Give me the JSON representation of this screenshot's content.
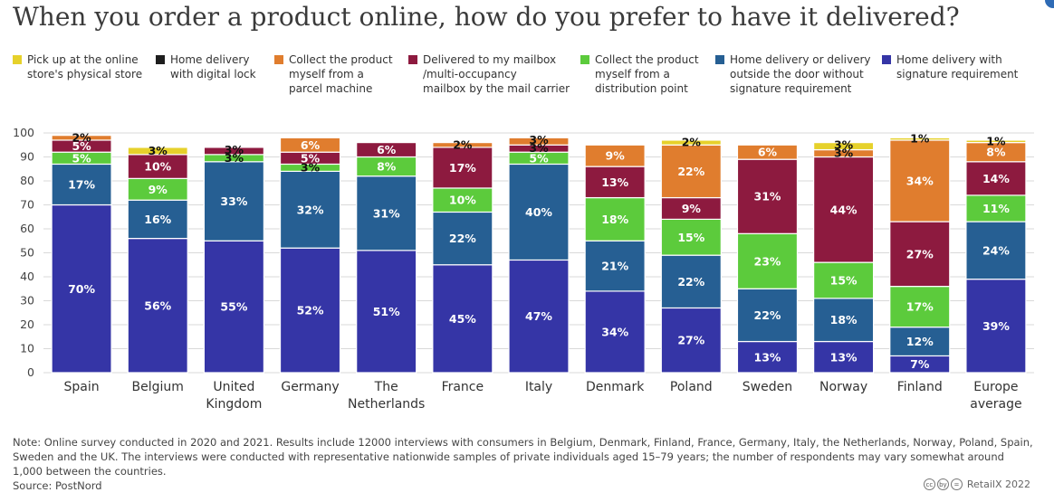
{
  "title": "When you order a product online, how do you prefer to have it delivered?",
  "note": "Note: Online survey conducted in 2020 and 2021. Results include 12000 interviews with consumers in Belgium, Denmark, Finland, France, Germany, Italy, the Netherlands, Norway, Poland, Spain, Sweden and the UK. The interviews were conducted with representative nationwide samples of private individuals aged 15–79 years; the number of respondents may vary somewhat around 1,000 between the countries.",
  "source": "Source: PostNord",
  "brand": "RetailX 2022",
  "cc_icons": [
    "cc",
    "by",
    "="
  ],
  "chart_data": {
    "type": "bar",
    "stacked": true,
    "title": "When you order a product online, how do you prefer to have it delivered?",
    "categories": [
      "Spain",
      "Belgium",
      "United\nKingdom",
      "Germany",
      "The\nNetherlands",
      "France",
      "Italy",
      "Denmark",
      "Poland",
      "Sweden",
      "Norway",
      "Finland",
      "Europe\naverage"
    ],
    "ylim": [
      0,
      100
    ],
    "yticks": [
      0,
      10,
      20,
      30,
      40,
      50,
      60,
      70,
      80,
      90,
      100
    ],
    "grid": true,
    "legend_position": "top",
    "series": [
      {
        "name": "Home delivery with signature requirement",
        "color": "#3535a6",
        "label_color": "#ffffff",
        "values": [
          70,
          56,
          55,
          52,
          51,
          45,
          47,
          34,
          27,
          13,
          13,
          7,
          39
        ]
      },
      {
        "name": "Home delivery or delivery outside the door without signature requirement",
        "color": "#265f93",
        "label_color": "#ffffff",
        "values": [
          17,
          16,
          33,
          32,
          31,
          22,
          40,
          21,
          22,
          22,
          18,
          12,
          24
        ]
      },
      {
        "name": "Collect the product myself from a distribution point",
        "color": "#5ccb3c",
        "label_color": "#ffffff",
        "values": [
          5,
          9,
          3,
          3,
          8,
          10,
          5,
          18,
          15,
          23,
          15,
          17,
          11
        ]
      },
      {
        "name": "Delivered to my mailbox /multi-occupancy mailbox by the mail carrier",
        "color": "#8d1a3f",
        "label_color": "#ffffff",
        "values": [
          5,
          10,
          3,
          5,
          6,
          17,
          3,
          13,
          9,
          31,
          44,
          27,
          14
        ]
      },
      {
        "name": "Collect the product myself from a parcel machine",
        "color": "#e07d2e",
        "label_color": "#ffffff",
        "values": [
          2,
          0,
          0,
          6,
          0,
          2,
          3,
          9,
          22,
          6,
          3,
          34,
          8
        ]
      },
      {
        "name": "Home delivery with digital lock",
        "color": "#1e1e1e",
        "label_color": "#ffffff",
        "values": [
          0,
          0,
          0,
          0,
          0,
          0,
          0,
          0,
          0,
          0,
          0,
          0,
          0
        ]
      },
      {
        "name": "Pick up at the online store's physical store",
        "color": "#e6d12b",
        "label_color": "#111111",
        "values": [
          0,
          3,
          0,
          0,
          0,
          0,
          0,
          0,
          2,
          0,
          3,
          1,
          1
        ]
      }
    ]
  },
  "legend": [
    {
      "label": "Pick up at the online\nstore's physical store",
      "color": "#e6d12b"
    },
    {
      "label": "Home delivery\nwith digital lock",
      "color": "#1e1e1e"
    },
    {
      "label": "Collect the product\nmyself from a\nparcel machine",
      "color": "#e07d2e"
    },
    {
      "label": "Delivered to my mailbox\n/multi-occupancy\nmailbox by the mail carrier",
      "color": "#8d1a3f"
    },
    {
      "label": "Collect the product\nmyself from a\ndistribution point",
      "color": "#5ccb3c"
    },
    {
      "label": "Home delivery or delivery\noutside the door without\nsignature requirement",
      "color": "#265f93"
    },
    {
      "label": "Home delivery with\nsignature requirement",
      "color": "#3535a6"
    }
  ]
}
